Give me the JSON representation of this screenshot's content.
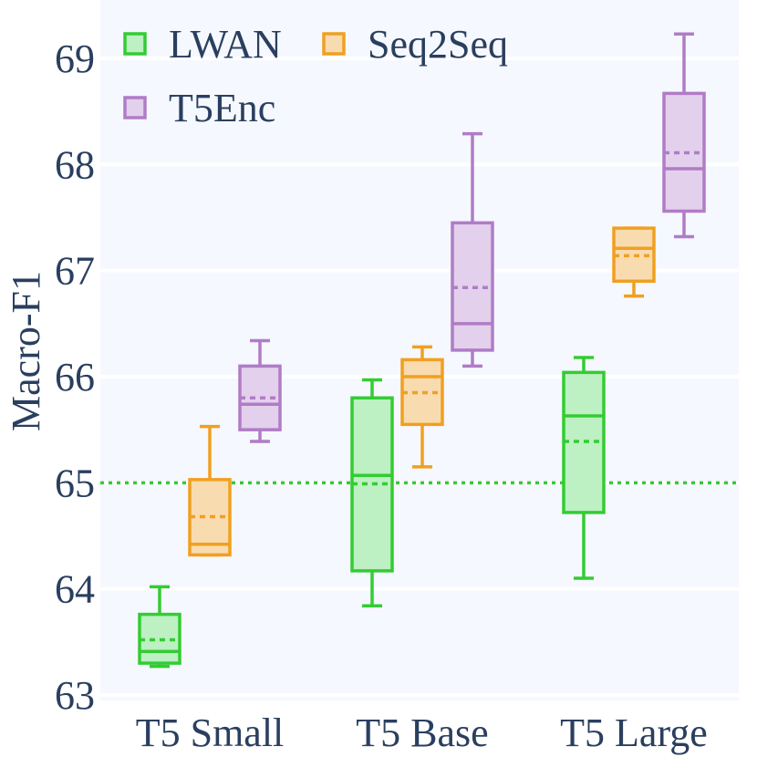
{
  "chart_data": {
    "type": "box",
    "ylabel": "Macro-F1",
    "xlabel": "",
    "ylim": [
      62.95,
      69.5
    ],
    "yticks": [
      63,
      64,
      65,
      66,
      67,
      68,
      69
    ],
    "ytick_labels": [
      "63",
      "64",
      "65",
      "66",
      "67",
      "68",
      "69"
    ],
    "categories": [
      "T5 Small",
      "T5 Base",
      "T5 Large"
    ],
    "reference_line": {
      "y": 65.0,
      "style": "dotted",
      "color": "#33cc33"
    },
    "legend": {
      "position": "top-left"
    },
    "series": [
      {
        "name": "LWAN",
        "color": "#33cc33",
        "fill": "#bdf0c2",
        "boxes": [
          {
            "category": "T5 Small",
            "min": 63.27,
            "q1": 63.3,
            "median": 63.41,
            "mean": 63.52,
            "q3": 63.76,
            "max": 64.02
          },
          {
            "category": "T5 Base",
            "min": 63.84,
            "q1": 64.17,
            "median": 65.07,
            "mean": 64.99,
            "q3": 65.8,
            "max": 65.97
          },
          {
            "category": "T5 Large",
            "min": 64.1,
            "q1": 64.72,
            "median": 65.63,
            "mean": 65.39,
            "q3": 66.04,
            "max": 66.18
          }
        ]
      },
      {
        "name": "Seq2Seq",
        "color": "#f0a020",
        "fill": "#f9dbb0",
        "boxes": [
          {
            "category": "T5 Small",
            "min": 64.32,
            "q1": 64.32,
            "median": 64.42,
            "mean": 64.68,
            "q3": 65.03,
            "max": 65.53
          },
          {
            "category": "T5 Base",
            "min": 65.15,
            "q1": 65.55,
            "median": 66.0,
            "mean": 65.85,
            "q3": 66.16,
            "max": 66.28
          },
          {
            "category": "T5 Large",
            "min": 66.76,
            "q1": 66.9,
            "median": 67.21,
            "mean": 67.14,
            "q3": 67.4,
            "max": 67.4
          }
        ]
      },
      {
        "name": "T5Enc",
        "color": "#b07cc6",
        "fill": "#e3d0ec",
        "boxes": [
          {
            "category": "T5 Small",
            "min": 65.39,
            "q1": 65.5,
            "median": 65.74,
            "mean": 65.8,
            "q3": 66.1,
            "max": 66.34
          },
          {
            "category": "T5 Base",
            "min": 66.1,
            "q1": 66.25,
            "median": 66.5,
            "mean": 66.84,
            "q3": 67.45,
            "max": 68.29
          },
          {
            "category": "T5 Large",
            "min": 67.32,
            "q1": 67.56,
            "median": 67.96,
            "mean": 68.11,
            "q3": 68.67,
            "max": 69.23
          }
        ]
      }
    ]
  }
}
